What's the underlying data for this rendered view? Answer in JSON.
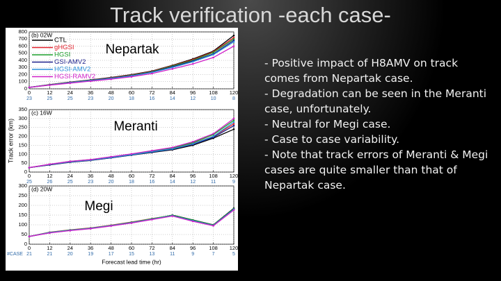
{
  "title": "Track verification -each case-",
  "bullets": [
    "- Positive impact of H8AMV on track comes from Nepartak case.",
    "- Degradation can be seen in the Meranti case, unfortunately.",
    "- Neutral for Megi case.",
    "- Case to case variability.",
    "- Note that track errors of Meranti & Megi cases are quite smaller than that of Nepartak case."
  ],
  "chart_data": [
    {
      "type": "line",
      "panel_label": "(b) 02W",
      "annotation": "Nepartak",
      "legend": "upper left",
      "grid": true,
      "x": [
        0,
        12,
        24,
        36,
        48,
        60,
        72,
        84,
        96,
        108,
        120
      ],
      "xlim": [
        0,
        120
      ],
      "xticks": [
        0,
        12,
        24,
        36,
        48,
        60,
        72,
        84,
        96,
        108,
        120
      ],
      "ylim": [
        0,
        800
      ],
      "yticks": [
        0,
        100,
        200,
        300,
        400,
        500,
        600,
        700,
        800
      ],
      "counts": [
        23,
        25,
        25,
        23,
        20,
        18,
        16,
        14,
        12,
        10,
        8
      ],
      "series": [
        {
          "name": "CTL",
          "color": "#000000",
          "values": [
            20,
            60,
            95,
            125,
            160,
            200,
            250,
            330,
            420,
            530,
            750
          ]
        },
        {
          "name": "gHGSI",
          "color": "#e0202a",
          "values": [
            20,
            58,
            92,
            122,
            155,
            195,
            245,
            325,
            410,
            520,
            720
          ]
        },
        {
          "name": "HGSI",
          "color": "#1a9e2a",
          "values": [
            20,
            57,
            90,
            120,
            150,
            190,
            240,
            320,
            400,
            510,
            700
          ]
        },
        {
          "name": "GSI-AMV2",
          "color": "#1b1f8a",
          "values": [
            20,
            55,
            88,
            118,
            148,
            185,
            235,
            310,
            390,
            490,
            680
          ]
        },
        {
          "name": "HGSI-AMV2",
          "color": "#2a8fd8",
          "values": [
            20,
            55,
            87,
            116,
            146,
            182,
            230,
            300,
            380,
            480,
            660
          ]
        },
        {
          "name": "HGSI-RAMV2",
          "color": "#d020c8",
          "values": [
            20,
            52,
            80,
            108,
            135,
            170,
            215,
            280,
            350,
            440,
            600
          ]
        }
      ]
    },
    {
      "type": "line",
      "panel_label": "(c) 16W",
      "annotation": "Meranti",
      "ylabel": "Track error (km)",
      "grid": true,
      "x": [
        0,
        12,
        24,
        36,
        48,
        60,
        72,
        84,
        96,
        108,
        120
      ],
      "xlim": [
        0,
        120
      ],
      "xticks": [
        0,
        12,
        24,
        36,
        48,
        60,
        72,
        84,
        96,
        108,
        120
      ],
      "ylim": [
        0,
        350
      ],
      "yticks": [
        0,
        50,
        100,
        150,
        200,
        250,
        300,
        350
      ],
      "counts": [
        25,
        26,
        25,
        23,
        20,
        18,
        16,
        14,
        12,
        11,
        9
      ],
      "series": [
        {
          "color": "#000000",
          "values": [
            25,
            40,
            55,
            65,
            80,
            95,
            110,
            125,
            150,
            190,
            240
          ]
        },
        {
          "color": "#e0202a",
          "values": [
            25,
            42,
            58,
            68,
            82,
            98,
            115,
            130,
            160,
            200,
            270
          ]
        },
        {
          "color": "#1a9e2a",
          "values": [
            25,
            43,
            60,
            70,
            85,
            100,
            118,
            135,
            165,
            210,
            290
          ]
        },
        {
          "color": "#1b1f8a",
          "values": [
            25,
            41,
            56,
            66,
            80,
            96,
            112,
            128,
            155,
            195,
            260
          ]
        },
        {
          "color": "#2a8fd8",
          "values": [
            25,
            42,
            57,
            67,
            82,
            97,
            114,
            130,
            158,
            200,
            280
          ]
        },
        {
          "color": "#d020c8",
          "values": [
            25,
            44,
            60,
            70,
            86,
            102,
            120,
            138,
            170,
            215,
            300
          ]
        }
      ]
    },
    {
      "type": "line",
      "panel_label": "(d) 20W",
      "annotation": "Megi",
      "xlabel": "Forecast lead time (hr)",
      "counts_label": "#CASE",
      "grid": true,
      "x": [
        0,
        12,
        24,
        36,
        48,
        60,
        72,
        84,
        96,
        108,
        120
      ],
      "xlim": [
        0,
        120
      ],
      "xticks": [
        0,
        12,
        24,
        36,
        48,
        60,
        72,
        84,
        96,
        108,
        120
      ],
      "ylim": [
        0,
        300
      ],
      "yticks": [
        0,
        50,
        100,
        150,
        200,
        250,
        300
      ],
      "counts": [
        21,
        21,
        20,
        19,
        17,
        15,
        13,
        11,
        9,
        7,
        5
      ],
      "series": [
        {
          "color": "#000000",
          "values": [
            40,
            60,
            72,
            82,
            96,
            112,
            130,
            150,
            125,
            100,
            185
          ]
        },
        {
          "color": "#e0202a",
          "values": [
            40,
            62,
            74,
            84,
            98,
            114,
            132,
            148,
            122,
            98,
            180
          ]
        },
        {
          "color": "#1a9e2a",
          "values": [
            40,
            61,
            73,
            83,
            97,
            113,
            131,
            149,
            124,
            99,
            182
          ]
        },
        {
          "color": "#1b1f8a",
          "values": [
            40,
            59,
            71,
            81,
            95,
            110,
            128,
            146,
            120,
            96,
            178
          ]
        },
        {
          "color": "#2a8fd8",
          "values": [
            40,
            60,
            72,
            82,
            96,
            111,
            129,
            147,
            121,
            97,
            180
          ]
        },
        {
          "color": "#d020c8",
          "values": [
            40,
            58,
            70,
            80,
            94,
            109,
            127,
            145,
            118,
            95,
            176
          ]
        }
      ]
    }
  ]
}
